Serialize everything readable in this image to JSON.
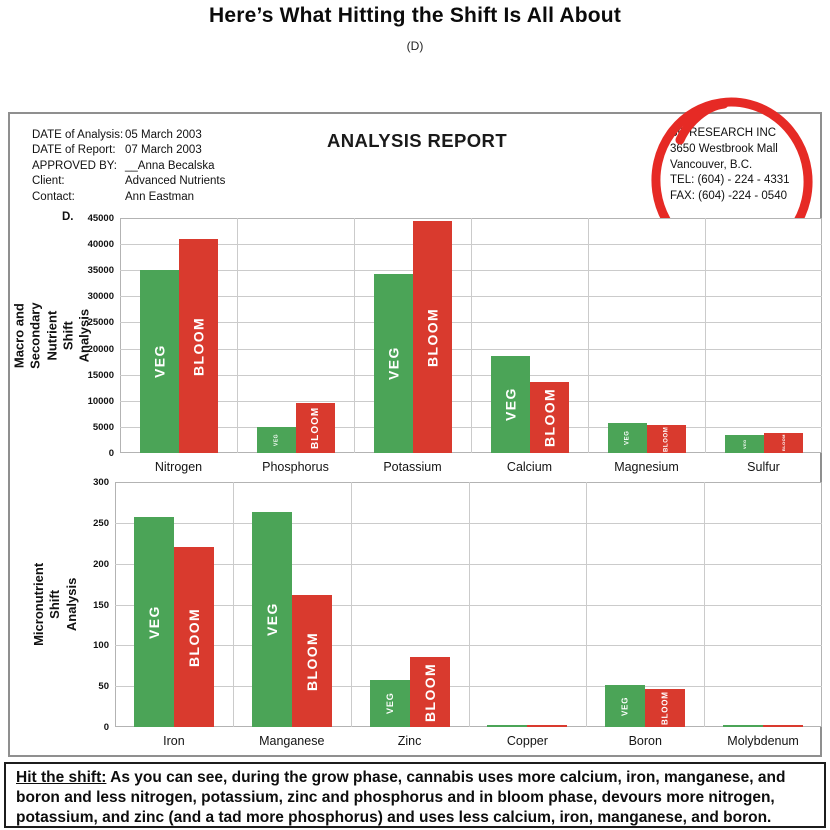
{
  "page": {
    "title": "Here’s What Hitting the Shift Is All About",
    "subtitle": "(D)"
  },
  "report": {
    "title": "ANALYSIS REPORT",
    "panel_label": "D.",
    "meta": [
      {
        "label": "DATE of Analysis:",
        "value": "05 March 2003"
      },
      {
        "label": "DATE of Report:",
        "value": "07 March 2003"
      },
      {
        "label": "APPROVED BY:",
        "value": "__Anna Becalska"
      },
      {
        "label": "Client:",
        "value": "Advanced Nutrients"
      },
      {
        "label": "Contact:",
        "value": "Ann Eastman"
      }
    ],
    "company": {
      "lines": [
        "BC RESEARCH INC",
        "3650 Westbrook Mall",
        "Vancouver, B.C.",
        "TEL: (604) - 224 - 4331",
        "FAX: (604) -224 - 0540"
      ]
    }
  },
  "colors": {
    "veg": "#4ba457",
    "bloom": "#d93a2e",
    "annotation_red": "#e62a25",
    "grid": "#cbcbcb"
  },
  "chart_data": [
    {
      "type": "bar",
      "title": "",
      "ylabel": "Macro and Secondary\nNutrient Shift Analysis",
      "xlabel": "",
      "categories": [
        "Nitrogen",
        "Phosphorus",
        "Potassium",
        "Calcium",
        "Magnesium",
        "Sulfur"
      ],
      "series": [
        {
          "name": "VEG",
          "values": [
            35000,
            5000,
            34300,
            18500,
            5800,
            3500
          ]
        },
        {
          "name": "BLOOM",
          "values": [
            41000,
            9600,
            44500,
            13600,
            5400,
            3900
          ]
        }
      ],
      "ylim": [
        0,
        45000
      ],
      "ytick_step": 5000,
      "grid": true,
      "legend": "labels inside bars"
    },
    {
      "type": "bar",
      "title": "",
      "ylabel": "Micronutrient Shift Analysis",
      "xlabel": "",
      "categories": [
        "Iron",
        "Manganese",
        "Zinc",
        "Copper",
        "Boron",
        "Molybdenum"
      ],
      "series": [
        {
          "name": "VEG",
          "values": [
            257,
            263,
            58,
            3,
            51,
            3
          ]
        },
        {
          "name": "BLOOM",
          "values": [
            220,
            162,
            86,
            3,
            47,
            3
          ]
        }
      ],
      "ylim": [
        0,
        300
      ],
      "ytick_step": 50,
      "grid": true,
      "legend": "labels inside bars"
    }
  ],
  "footer_note": {
    "lead": "Hit the shift:",
    "text": " As you can see, during the grow phase, cannabis uses more calcium, iron, manganese, and boron and less nitrogen, potassium, zinc and phosphorus and in bloom phase, devours more nitrogen, potassium, and zinc (and a tad more phosphorus) and uses less calcium, iron, manganese, and boron."
  }
}
